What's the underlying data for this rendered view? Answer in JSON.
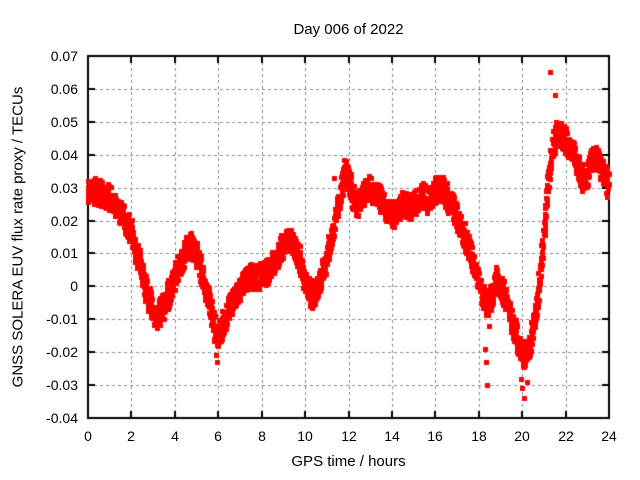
{
  "chart_data": {
    "type": "scatter",
    "title": "Day 006 of 2022",
    "xlabel": "GPS time / hours",
    "ylabel": "GNSS SOLERA EUV flux rate proxy / TECUs",
    "xlim": [
      0,
      24
    ],
    "ylim": [
      -0.04,
      0.07
    ],
    "grid": true,
    "legend": "none",
    "marker": "filled-square",
    "marker_size_px": 5,
    "colors": {
      "points": "#ff0000",
      "grid": "#8c8c8c",
      "frame": "#000000",
      "background": "#ffffff",
      "text": "#000000"
    },
    "xticks": [
      {
        "v": 0,
        "label": "0"
      },
      {
        "v": 2,
        "label": "2"
      },
      {
        "v": 4,
        "label": "4"
      },
      {
        "v": 6,
        "label": "6"
      },
      {
        "v": 8,
        "label": "8"
      },
      {
        "v": 10,
        "label": "10"
      },
      {
        "v": 12,
        "label": "12"
      },
      {
        "v": 14,
        "label": "14"
      },
      {
        "v": 16,
        "label": "16"
      },
      {
        "v": 18,
        "label": "18"
      },
      {
        "v": 20,
        "label": "20"
      },
      {
        "v": 22,
        "label": "22"
      },
      {
        "v": 24,
        "label": "24"
      }
    ],
    "yticks": [
      {
        "v": 0.07,
        "label": "0.07"
      },
      {
        "v": 0.06,
        "label": "0.06"
      },
      {
        "v": 0.05,
        "label": "0.05"
      },
      {
        "v": 0.04,
        "label": "0.04"
      },
      {
        "v": 0.03,
        "label": "0.03"
      },
      {
        "v": 0.02,
        "label": "0.02"
      },
      {
        "v": 0.01,
        "label": "0.01"
      },
      {
        "v": 0,
        "label": "0"
      },
      {
        "v": -0.01,
        "label": "-0.01"
      },
      {
        "v": -0.02,
        "label": "-0.02"
      },
      {
        "v": -0.03,
        "label": "-0.03"
      },
      {
        "v": -0.04,
        "label": "-0.04"
      }
    ],
    "band_halfwidth": 0.004,
    "trend": [
      [
        0.0,
        0.028
      ],
      [
        0.3,
        0.029
      ],
      [
        0.6,
        0.028
      ],
      [
        0.9,
        0.0275
      ],
      [
        1.2,
        0.0255
      ],
      [
        1.5,
        0.022
      ],
      [
        1.8,
        0.019
      ],
      [
        2.0,
        0.016
      ],
      [
        2.2,
        0.011
      ],
      [
        2.4,
        0.006
      ],
      [
        2.6,
        0.001
      ],
      [
        2.8,
        -0.004
      ],
      [
        3.0,
        -0.008
      ],
      [
        3.1,
        -0.009
      ],
      [
        3.3,
        -0.008
      ],
      [
        3.5,
        -0.006
      ],
      [
        3.7,
        -0.002
      ],
      [
        3.9,
        0.001
      ],
      [
        4.1,
        0.005
      ],
      [
        4.3,
        0.008
      ],
      [
        4.5,
        0.011
      ],
      [
        4.7,
        0.013
      ],
      [
        4.9,
        0.011
      ],
      [
        5.1,
        0.007
      ],
      [
        5.3,
        0.002
      ],
      [
        5.5,
        -0.003
      ],
      [
        5.7,
        -0.009
      ],
      [
        5.9,
        -0.015
      ],
      [
        6.1,
        -0.013
      ],
      [
        6.3,
        -0.01
      ],
      [
        6.5,
        -0.006
      ],
      [
        6.7,
        -0.004
      ],
      [
        6.9,
        -0.002
      ],
      [
        7.1,
        0.0
      ],
      [
        7.3,
        0.002
      ],
      [
        7.5,
        0.003
      ],
      [
        7.7,
        0.003
      ],
      [
        7.9,
        0.003
      ],
      [
        8.1,
        0.004
      ],
      [
        8.3,
        0.005
      ],
      [
        8.5,
        0.007
      ],
      [
        8.7,
        0.009
      ],
      [
        8.9,
        0.012
      ],
      [
        9.1,
        0.013
      ],
      [
        9.3,
        0.014
      ],
      [
        9.5,
        0.012
      ],
      [
        9.7,
        0.009
      ],
      [
        9.9,
        0.004
      ],
      [
        10.1,
        0.0
      ],
      [
        10.3,
        -0.003
      ],
      [
        10.5,
        -0.001
      ],
      [
        10.7,
        0.002
      ],
      [
        10.9,
        0.007
      ],
      [
        11.1,
        0.012
      ],
      [
        11.3,
        0.017
      ],
      [
        11.5,
        0.023
      ],
      [
        11.7,
        0.031
      ],
      [
        11.85,
        0.0345
      ],
      [
        12.0,
        0.032
      ],
      [
        12.2,
        0.027
      ],
      [
        12.4,
        0.025
      ],
      [
        12.6,
        0.027
      ],
      [
        12.8,
        0.029
      ],
      [
        13.0,
        0.03
      ],
      [
        13.2,
        0.028
      ],
      [
        13.4,
        0.027
      ],
      [
        13.6,
        0.025
      ],
      [
        13.8,
        0.023
      ],
      [
        14.0,
        0.022
      ],
      [
        14.2,
        0.022
      ],
      [
        14.4,
        0.024
      ],
      [
        14.6,
        0.025
      ],
      [
        14.8,
        0.024
      ],
      [
        15.0,
        0.025
      ],
      [
        15.2,
        0.027
      ],
      [
        15.4,
        0.028
      ],
      [
        15.6,
        0.026
      ],
      [
        15.8,
        0.027
      ],
      [
        16.0,
        0.029
      ],
      [
        16.2,
        0.03
      ],
      [
        16.4,
        0.029
      ],
      [
        16.6,
        0.026
      ],
      [
        16.8,
        0.024
      ],
      [
        17.0,
        0.021
      ],
      [
        17.2,
        0.018
      ],
      [
        17.4,
        0.014
      ],
      [
        17.6,
        0.01
      ],
      [
        17.8,
        0.005
      ],
      [
        18.0,
        0.001
      ],
      [
        18.2,
        -0.003
      ],
      [
        18.4,
        -0.005
      ],
      [
        18.6,
        -0.003
      ],
      [
        18.8,
        0.002
      ],
      [
        19.0,
        0.0
      ],
      [
        19.2,
        -0.003
      ],
      [
        19.4,
        -0.008
      ],
      [
        19.6,
        -0.012
      ],
      [
        19.8,
        -0.016
      ],
      [
        20.0,
        -0.02
      ],
      [
        20.1,
        -0.022
      ],
      [
        20.3,
        -0.019
      ],
      [
        20.5,
        -0.013
      ],
      [
        20.7,
        -0.005
      ],
      [
        20.9,
        0.008
      ],
      [
        21.0,
        0.016
      ],
      [
        21.1,
        0.024
      ],
      [
        21.2,
        0.031
      ],
      [
        21.3,
        0.038
      ],
      [
        21.45,
        0.044
      ],
      [
        21.6,
        0.047
      ],
      [
        21.8,
        0.046
      ],
      [
        22.0,
        0.044
      ],
      [
        22.2,
        0.042
      ],
      [
        22.4,
        0.04
      ],
      [
        22.6,
        0.036
      ],
      [
        22.8,
        0.032
      ],
      [
        23.0,
        0.034
      ],
      [
        23.2,
        0.038
      ],
      [
        23.4,
        0.039
      ],
      [
        23.6,
        0.037
      ],
      [
        23.8,
        0.034
      ],
      [
        24.0,
        0.03
      ]
    ],
    "outliers": [
      [
        5.88,
        -0.021
      ],
      [
        5.92,
        -0.023
      ],
      [
        11.35,
        0.033
      ],
      [
        18.3,
        -0.019
      ],
      [
        18.35,
        -0.023
      ],
      [
        18.4,
        -0.03
      ],
      [
        18.45,
        -0.012
      ],
      [
        19.95,
        -0.028
      ],
      [
        20.0,
        -0.031
      ],
      [
        20.1,
        -0.034
      ],
      [
        20.2,
        -0.029
      ],
      [
        21.3,
        0.065
      ],
      [
        21.5,
        0.058
      ]
    ]
  }
}
